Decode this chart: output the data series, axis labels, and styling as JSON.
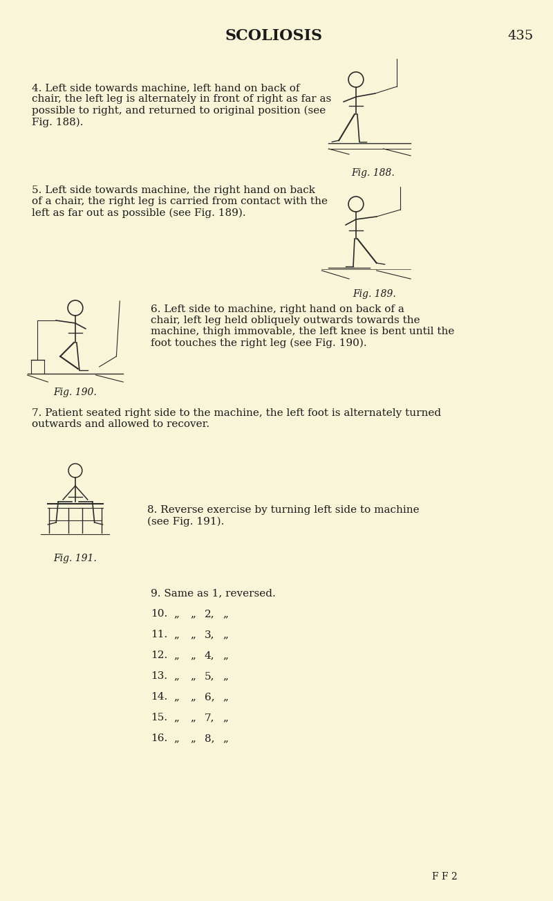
{
  "bg_color": "#f8f5d8",
  "text_color": "#1a1a1a",
  "title": "SCOLIOSIS",
  "page_number": "435",
  "para4": "4. Left side towards machine, left hand on back of\nchair, the left leg is alternately in front of right as far as\npossible to right, and returned to original position (see\nFig. 188).",
  "fig188_caption": "Fig. 188.",
  "para5": "5. Left side towards machine, the right hand on back\nof a chair, the right leg is carried from contact with the\nleft as far out as possible (see Fig. 189).",
  "fig189_caption": "Fig. 189.",
  "para6": "6. Left side to machine, right hand on back of a\nchair, left leg held obliquely outwards towards the\nmachine, thigh immovable, the left knee is bent until the\nfoot touches the right leg (see Fig. 190).",
  "fig190_caption": "Fig. 190.",
  "para7": "7. Patient seated right side to the machine, the left foot is alternately turned\noutwards and allowed to recover.",
  "para8": "8. Reverse exercise by turning left side to machine\n(see Fig. 191).",
  "fig191_caption": "Fig. 191.",
  "numbered_list": [
    "9. Same as 1, reversed.",
    "10.  „   „  2,   „",
    "11.  „   „  3,   „",
    "12.  „   „  4,   „",
    "13.  „   „  5,   „",
    "14.  „   „  6,   „",
    "15.  „   „  7,   „",
    "16.  „   „  8,   „"
  ],
  "footer": "F F 2"
}
